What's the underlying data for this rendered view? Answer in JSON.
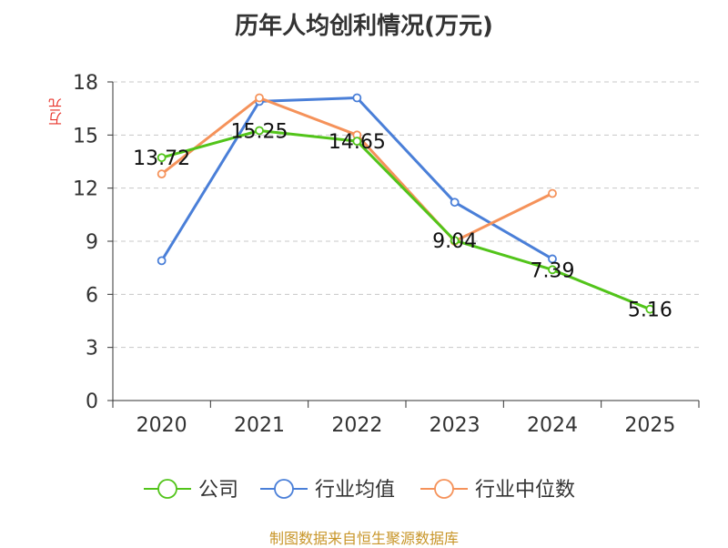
{
  "chart_data": {
    "type": "line",
    "title": "历年人均创利情况(万元)",
    "ylabel": "万元",
    "xlabel": "",
    "categories": [
      "2020",
      "2021",
      "2022",
      "2023",
      "2024",
      "2025"
    ],
    "ylim": [
      0,
      18
    ],
    "yticks": [
      0,
      3,
      6,
      9,
      12,
      15,
      18
    ],
    "grid": true,
    "legend_position": "bottom",
    "series": [
      {
        "name": "公司",
        "color": "#52c41a",
        "values": [
          13.72,
          15.25,
          14.65,
          9.04,
          7.39,
          5.16
        ],
        "labels": [
          "13.72",
          "15.25",
          "14.65",
          "9.04",
          "7.39",
          "5.16"
        ]
      },
      {
        "name": "行业均值",
        "color": "#4a7fd8",
        "values": [
          7.9,
          16.9,
          17.1,
          11.2,
          8.0,
          null
        ]
      },
      {
        "name": "行业中位数",
        "color": "#f5925a",
        "values": [
          12.8,
          17.1,
          15.0,
          9.0,
          11.7,
          null
        ]
      }
    ]
  },
  "source_text": "制图数据来自恒生聚源数据库"
}
